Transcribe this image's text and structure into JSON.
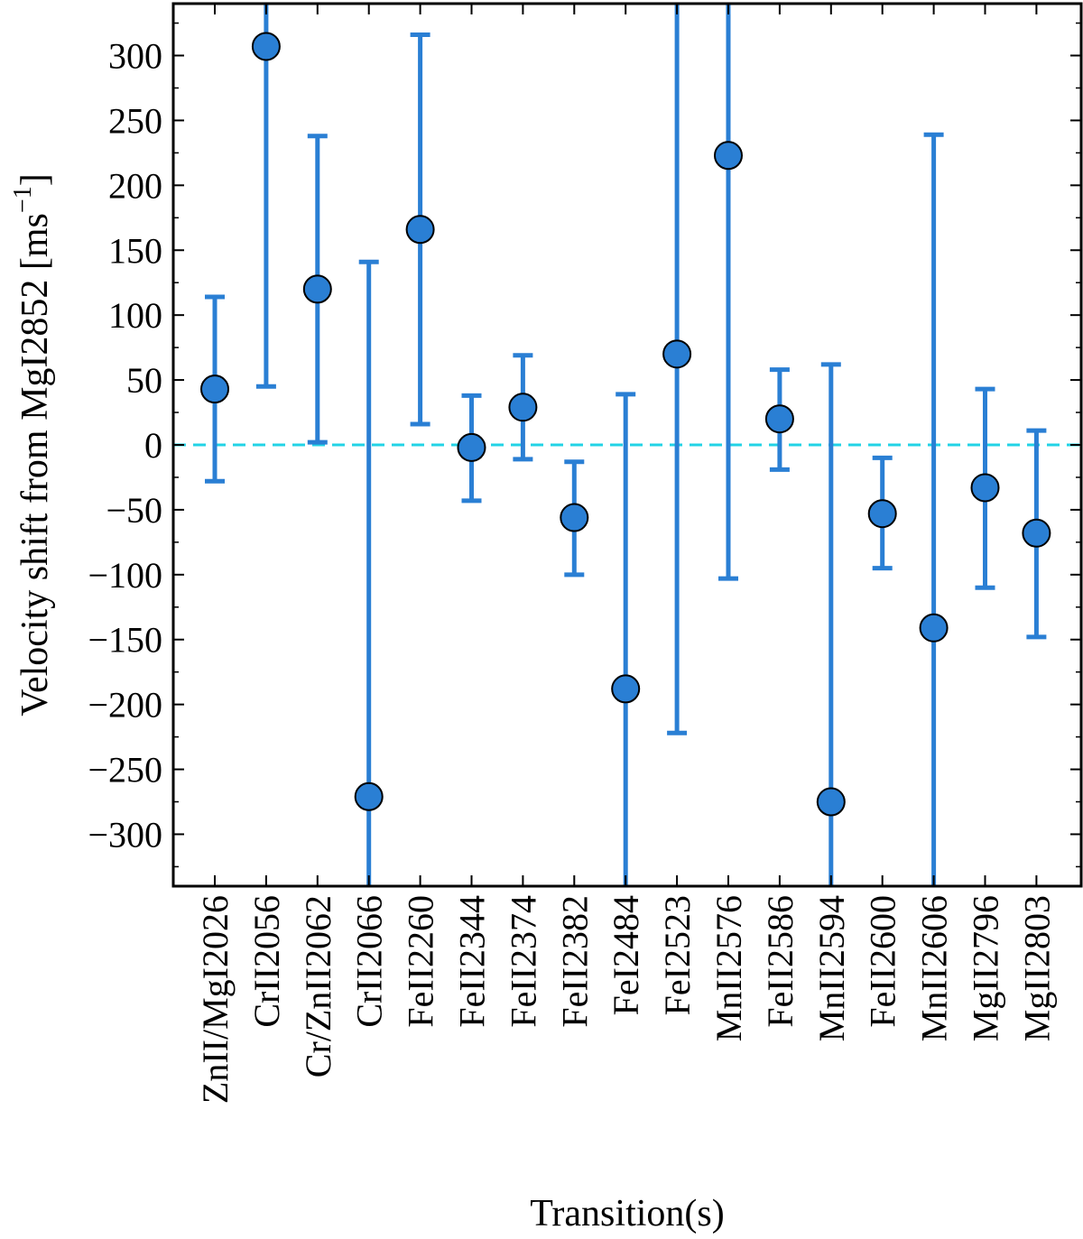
{
  "chart_data": {
    "type": "scatter",
    "title": "",
    "xlabel": "Transition(s)",
    "ylabel": "Velocity shift from MgI2852 [ms",
    "ylabel_exponent": "−1",
    "ylabel_close": "]",
    "ylim": [
      -340,
      340
    ],
    "yticks": [
      -300,
      -250,
      -200,
      -150,
      -100,
      -50,
      0,
      50,
      100,
      150,
      200,
      250,
      300
    ],
    "ytick_labels": [
      "−300",
      "−250",
      "−200",
      "−150",
      "−100",
      "−50",
      "0",
      "50",
      "100",
      "150",
      "200",
      "250",
      "300"
    ],
    "reference_line": {
      "y": 0,
      "color": "#22d3e6",
      "style": "dashed"
    },
    "marker_color": "#2a7fd4",
    "categories": [
      "ZnII/MgI2026",
      "CrII2056",
      "Cr/ZnII2062",
      "CrII2066",
      "FeII2260",
      "FeII2344",
      "FeII2374",
      "FeII2382",
      "FeI2484",
      "FeI2523",
      "MnII2576",
      "FeII2586",
      "MnII2594",
      "FeII2600",
      "MnII2606",
      "MgII2796",
      "MgII2803"
    ],
    "values": [
      43,
      307,
      120,
      -271,
      166,
      -2,
      29,
      -56,
      -188,
      70,
      223,
      20,
      -275,
      -53,
      -141,
      -33,
      -68
    ],
    "err_low": [
      -28,
      45,
      2,
      -520,
      16,
      -43,
      -11,
      -100,
      -420,
      -222,
      -103,
      -19,
      -520,
      -95,
      -520,
      -110,
      -148
    ],
    "err_high": [
      114,
      520,
      238,
      141,
      316,
      38,
      69,
      -13,
      39,
      520,
      520,
      58,
      62,
      -10,
      239,
      43,
      11
    ]
  }
}
